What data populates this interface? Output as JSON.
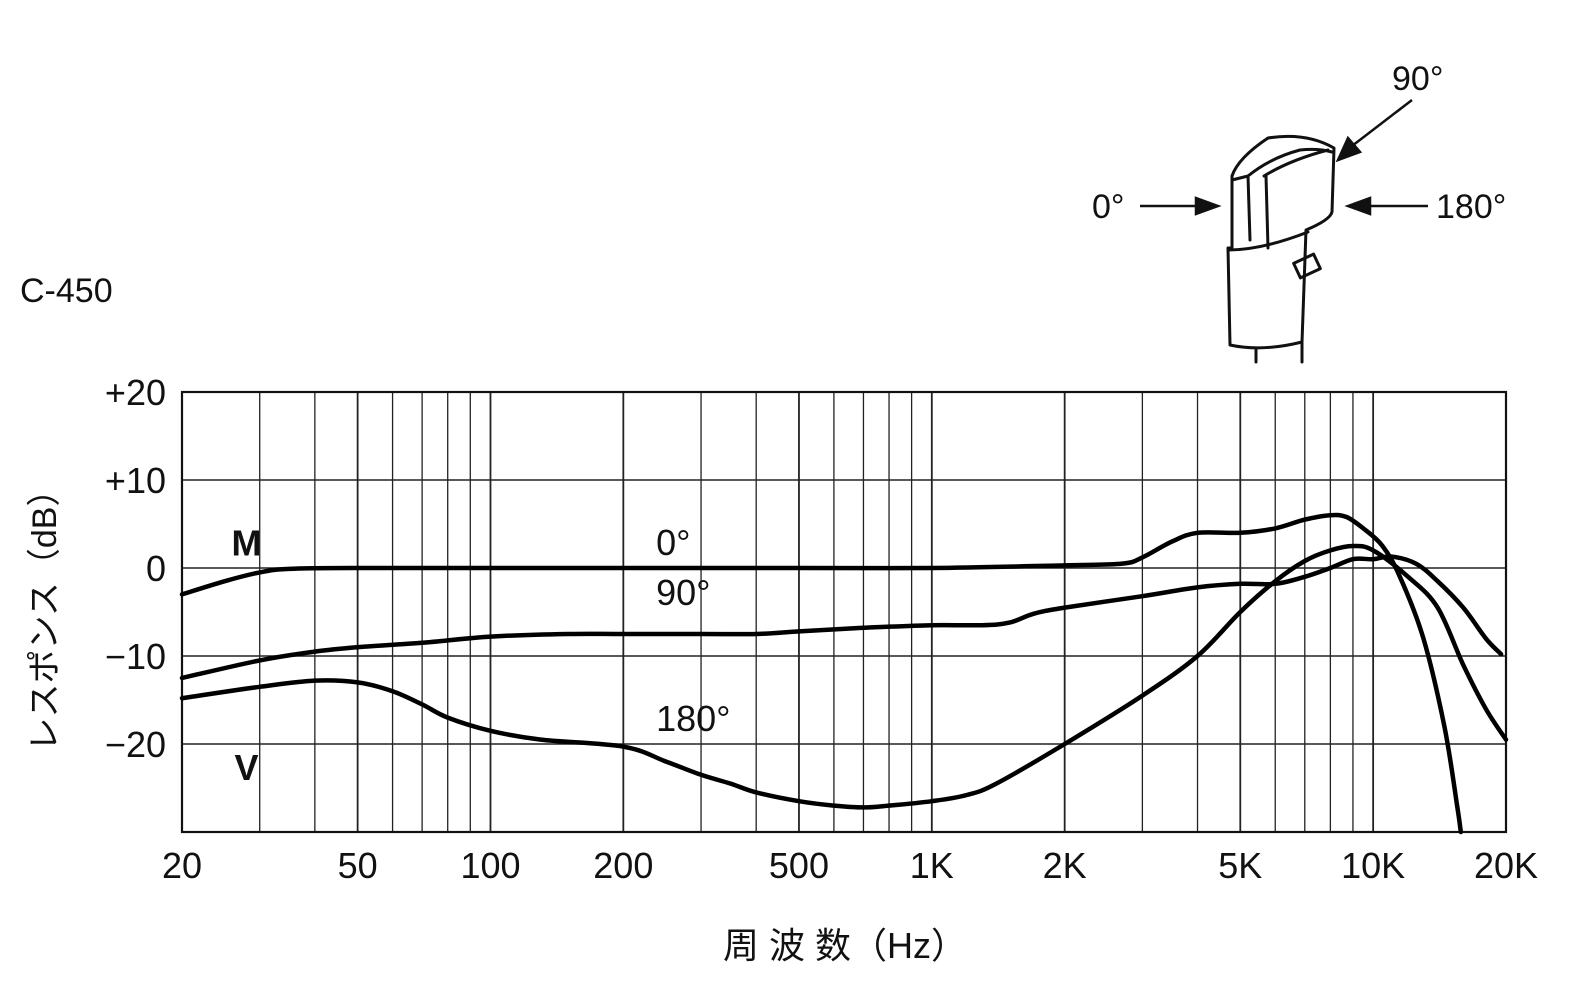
{
  "chart_data": {
    "type": "line",
    "model": "C-450",
    "xlabel": "周 波 数（Hz）",
    "ylabel": "レスポンス（dB）",
    "x_scale": "log",
    "xlim": [
      20,
      20000
    ],
    "ylim": [
      -30,
      20
    ],
    "grid": true,
    "x_ticks": [
      {
        "value": 20,
        "label": "20"
      },
      {
        "value": 50,
        "label": "50"
      },
      {
        "value": 100,
        "label": "100"
      },
      {
        "value": 200,
        "label": "200"
      },
      {
        "value": 500,
        "label": "500"
      },
      {
        "value": 1000,
        "label": "1K"
      },
      {
        "value": 2000,
        "label": "2K"
      },
      {
        "value": 5000,
        "label": "5K"
      },
      {
        "value": 10000,
        "label": "10K"
      },
      {
        "value": 20000,
        "label": "20K"
      }
    ],
    "y_ticks": [
      {
        "value": 20,
        "label": "+20"
      },
      {
        "value": 10,
        "label": "+10"
      },
      {
        "value": 0,
        "label": "0"
      },
      {
        "value": -10,
        "label": "−10"
      },
      {
        "value": -20,
        "label": "−20"
      }
    ],
    "series": [
      {
        "name": "0°",
        "label_at": [
          230,
          1.5
        ],
        "points": [
          [
            20,
            -3
          ],
          [
            25,
            -1.5
          ],
          [
            30,
            -0.5
          ],
          [
            35,
            -0.1
          ],
          [
            50,
            0
          ],
          [
            100,
            0
          ],
          [
            200,
            0
          ],
          [
            500,
            0
          ],
          [
            1000,
            0
          ],
          [
            2000,
            0.3
          ],
          [
            2700,
            0.5
          ],
          [
            3000,
            1.2
          ],
          [
            3500,
            3
          ],
          [
            4000,
            4
          ],
          [
            5000,
            4
          ],
          [
            6000,
            4.5
          ],
          [
            7000,
            5.5
          ],
          [
            8000,
            6
          ],
          [
            8700,
            5.8
          ],
          [
            9500,
            4.5
          ],
          [
            10500,
            2.5
          ],
          [
            11500,
            -1
          ],
          [
            13000,
            -8
          ],
          [
            14500,
            -18
          ],
          [
            15500,
            -27
          ],
          [
            15800,
            -30
          ]
        ]
      },
      {
        "name": "90°",
        "label_at": [
          230,
          -4.2
        ],
        "points": [
          [
            20,
            -12.5
          ],
          [
            30,
            -10.5
          ],
          [
            40,
            -9.5
          ],
          [
            50,
            -9
          ],
          [
            70,
            -8.5
          ],
          [
            100,
            -7.8
          ],
          [
            150,
            -7.5
          ],
          [
            200,
            -7.5
          ],
          [
            300,
            -7.5
          ],
          [
            400,
            -7.5
          ],
          [
            500,
            -7.2
          ],
          [
            700,
            -6.8
          ],
          [
            1000,
            -6.5
          ],
          [
            1300,
            -6.5
          ],
          [
            1500,
            -6.2
          ],
          [
            1700,
            -5.2
          ],
          [
            2000,
            -4.5
          ],
          [
            3000,
            -3.2
          ],
          [
            4000,
            -2.2
          ],
          [
            5000,
            -1.8
          ],
          [
            6000,
            -1.8
          ],
          [
            7000,
            -1
          ],
          [
            8000,
            0
          ],
          [
            9000,
            1
          ],
          [
            10000,
            1
          ],
          [
            11000,
            1.3
          ],
          [
            12500,
            0.5
          ],
          [
            14000,
            -1.5
          ],
          [
            16000,
            -4.5
          ],
          [
            18000,
            -8
          ],
          [
            19500,
            -9.8
          ]
        ]
      },
      {
        "name": "180°",
        "label_at": [
          230,
          -18.5
        ],
        "points": [
          [
            20,
            -14.8
          ],
          [
            30,
            -13.5
          ],
          [
            40,
            -12.8
          ],
          [
            50,
            -13
          ],
          [
            60,
            -14
          ],
          [
            70,
            -15.5
          ],
          [
            80,
            -17
          ],
          [
            100,
            -18.5
          ],
          [
            130,
            -19.5
          ],
          [
            200,
            -20.3
          ],
          [
            250,
            -22
          ],
          [
            300,
            -23.5
          ],
          [
            350,
            -24.5
          ],
          [
            400,
            -25.5
          ],
          [
            500,
            -26.5
          ],
          [
            600,
            -27
          ],
          [
            700,
            -27.2
          ],
          [
            800,
            -27
          ],
          [
            1000,
            -26.5
          ],
          [
            1200,
            -25.8
          ],
          [
            1400,
            -24.5
          ],
          [
            2000,
            -20
          ],
          [
            3000,
            -14.5
          ],
          [
            4000,
            -10
          ],
          [
            5000,
            -5
          ],
          [
            6000,
            -1.5
          ],
          [
            7000,
            0.8
          ],
          [
            8000,
            2
          ],
          [
            9000,
            2.5
          ],
          [
            10000,
            2
          ],
          [
            12000,
            -1
          ],
          [
            14000,
            -4.5
          ],
          [
            16000,
            -11
          ],
          [
            18000,
            -16
          ],
          [
            20000,
            -19.5
          ]
        ]
      }
    ],
    "curve_labels": [
      {
        "text": "M",
        "at": [
          28,
          3
        ]
      },
      {
        "text": "V",
        "at": [
          28,
          -22.5
        ]
      }
    ]
  },
  "diagram": {
    "labels": [
      "90°",
      "0°",
      "180°"
    ]
  }
}
